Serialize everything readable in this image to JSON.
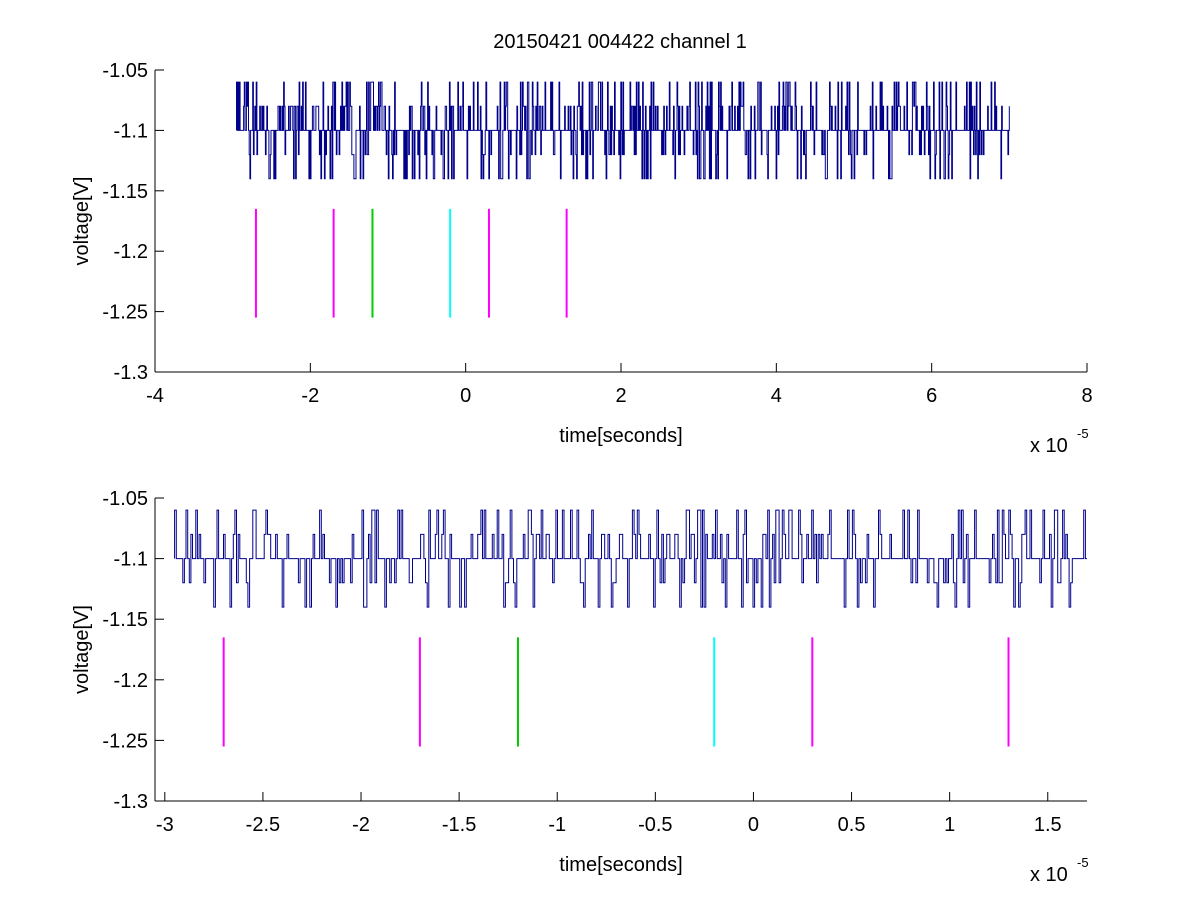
{
  "figure_title": "20150421 004422 channel 1",
  "chart_data": [
    {
      "type": "line",
      "title": "20150421 004422 channel 1",
      "xlabel": "time[seconds]",
      "ylabel": "voltage[V]",
      "x_exponent_base": "x 10",
      "x_exponent_power": "-5",
      "xlim": [
        -4,
        8
      ],
      "ylim": [
        -1.3,
        -1.05
      ],
      "xticks": [
        -4,
        -2,
        0,
        2,
        4,
        6,
        8
      ],
      "xtick_labels": [
        "-4",
        "-2",
        "0",
        "2",
        "4",
        "6",
        "8"
      ],
      "yticks": [
        -1.3,
        -1.25,
        -1.2,
        -1.15,
        -1.1,
        -1.05
      ],
      "ytick_labels": [
        "-1.3",
        "-1.25",
        "-1.2",
        "-1.15",
        "-1.1",
        "-1.05"
      ],
      "grid": false,
      "signal": {
        "color": "#00008b",
        "x_range": [
          -2.95,
          7.0
        ],
        "baseline": -1.1,
        "levels": [
          -1.06,
          -1.08,
          -1.1,
          -1.12,
          -1.14
        ]
      },
      "markers": [
        {
          "x": -2.7,
          "y0": -1.255,
          "y1": -1.165,
          "color": "#ff00ff"
        },
        {
          "x": -1.7,
          "y0": -1.255,
          "y1": -1.165,
          "color": "#ff00ff"
        },
        {
          "x": -1.2,
          "y0": -1.255,
          "y1": -1.165,
          "color": "#00cc00"
        },
        {
          "x": -0.2,
          "y0": -1.255,
          "y1": -1.165,
          "color": "#00ffff"
        },
        {
          "x": 0.3,
          "y0": -1.255,
          "y1": -1.165,
          "color": "#ff00ff"
        },
        {
          "x": 1.3,
          "y0": -1.255,
          "y1": -1.165,
          "color": "#ff00ff"
        }
      ]
    },
    {
      "type": "line",
      "title": "",
      "xlabel": "time[seconds]",
      "ylabel": "voltage[V]",
      "x_exponent_base": "x 10",
      "x_exponent_power": "-5",
      "xlim": [
        -3.05,
        1.7
      ],
      "ylim": [
        -1.3,
        -1.05
      ],
      "xticks": [
        -3,
        -2.5,
        -2,
        -1.5,
        -1,
        -0.5,
        0,
        0.5,
        1,
        1.5
      ],
      "xtick_labels": [
        "-3",
        "-2.5",
        "-2",
        "-1.5",
        "-1",
        "-0.5",
        "0",
        "0.5",
        "1",
        "1.5"
      ],
      "yticks": [
        -1.3,
        -1.25,
        -1.2,
        -1.15,
        -1.1,
        -1.05
      ],
      "ytick_labels": [
        "-1.3",
        "-1.25",
        "-1.2",
        "-1.15",
        "-1.1",
        "-1.05"
      ],
      "grid": false,
      "signal": {
        "color": "#00008b",
        "x_range": [
          -2.95,
          1.7
        ],
        "baseline": -1.1,
        "levels": [
          -1.06,
          -1.08,
          -1.1,
          -1.12,
          -1.14
        ]
      },
      "markers": [
        {
          "x": -2.7,
          "y0": -1.255,
          "y1": -1.165,
          "color": "#ff00ff"
        },
        {
          "x": -1.7,
          "y0": -1.255,
          "y1": -1.165,
          "color": "#ff00ff"
        },
        {
          "x": -1.2,
          "y0": -1.255,
          "y1": -1.165,
          "color": "#00cc00"
        },
        {
          "x": -0.2,
          "y0": -1.255,
          "y1": -1.165,
          "color": "#00ffff"
        },
        {
          "x": 0.3,
          "y0": -1.255,
          "y1": -1.165,
          "color": "#ff00ff"
        },
        {
          "x": 1.3,
          "y0": -1.255,
          "y1": -1.165,
          "color": "#ff00ff"
        }
      ]
    }
  ]
}
